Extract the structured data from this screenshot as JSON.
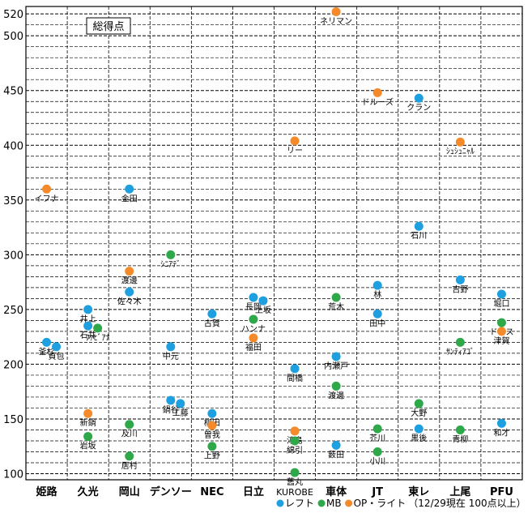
{
  "chart_data": {
    "type": "scatter",
    "title": "総得点",
    "categories": [
      "姫路",
      "久光",
      "岡山",
      "デンソー",
      "NEC",
      "日立",
      "KUROBE",
      "車体",
      "JT",
      "東レ",
      "上尾",
      "PFU"
    ],
    "yticks": [
      100,
      150,
      200,
      250,
      300,
      350,
      400,
      450,
      500,
      520
    ],
    "ylim": [
      95,
      525
    ],
    "legend": [
      {
        "name": "レフト",
        "color": "#1e9fe0"
      },
      {
        "name": "MB",
        "color": "#2fa84a"
      },
      {
        "name": "OP・ライト",
        "color": "#f58a2b"
      }
    ],
    "footnote": "（12/29現在 100点以上）",
    "colors": {
      "レフト": "#1e9fe0",
      "MB": "#2fa84a",
      "OP・ライト": "#f58a2b"
    },
    "points": [
      {
        "team": "姫路",
        "name": "イフナ",
        "pos": "OP・ライト",
        "value": 360
      },
      {
        "team": "姫路",
        "name": "釜杉",
        "pos": "レフト",
        "value": 220
      },
      {
        "team": "姫路",
        "name": "貞包",
        "pos": "レフト",
        "value": 216
      },
      {
        "team": "久光",
        "name": "井上",
        "pos": "レフト",
        "value": 250
      },
      {
        "team": "久光",
        "name": "石井",
        "pos": "レフト",
        "value": 235
      },
      {
        "team": "久光",
        "name": "ﾌｧﾋﾞｱﾅ",
        "pos": "MB",
        "value": 233
      },
      {
        "team": "久光",
        "name": "新鍋",
        "pos": "OP・ライト",
        "value": 155
      },
      {
        "team": "久光",
        "name": "岩坂",
        "pos": "MB",
        "value": 134
      },
      {
        "team": "岡山",
        "name": "金田",
        "pos": "レフト",
        "value": 360
      },
      {
        "team": "岡山",
        "name": "渡邊",
        "pos": "OP・ライト",
        "value": 285
      },
      {
        "team": "岡山",
        "name": "佐々木",
        "pos": "レフト",
        "value": 266
      },
      {
        "team": "岡山",
        "name": "及川",
        "pos": "MB",
        "value": 145
      },
      {
        "team": "岡山",
        "name": "居村",
        "pos": "MB",
        "value": 116
      },
      {
        "team": "デンソー",
        "name": "ｼﾆｱﾃﾞ",
        "pos": "MB",
        "value": 300
      },
      {
        "team": "デンソー",
        "name": "中元",
        "pos": "レフト",
        "value": 216
      },
      {
        "team": "デンソー",
        "name": "鍋谷",
        "pos": "レフト",
        "value": 167
      },
      {
        "team": "デンソー",
        "name": "工藤",
        "pos": "レフト",
        "value": 164
      },
      {
        "team": "NEC",
        "name": "古賀",
        "pos": "レフト",
        "value": 246
      },
      {
        "team": "NEC",
        "name": "柳田",
        "pos": "レフト",
        "value": 155
      },
      {
        "team": "NEC",
        "name": "曽我",
        "pos": "OP・ライト",
        "value": 144
      },
      {
        "team": "NEC",
        "name": "上野",
        "pos": "MB",
        "value": 125
      },
      {
        "team": "日立",
        "name": "長岡",
        "pos": "レフト",
        "value": 261
      },
      {
        "team": "日立",
        "name": "上坂",
        "pos": "レフト",
        "value": 258
      },
      {
        "team": "日立",
        "name": "ハンナ",
        "pos": "MB",
        "value": 241
      },
      {
        "team": "日立",
        "name": "福田",
        "pos": "OP・ライト",
        "value": 224
      },
      {
        "team": "KUROBE",
        "name": "リー",
        "pos": "OP・ライト",
        "value": 404
      },
      {
        "team": "KUROBE",
        "name": "間橋",
        "pos": "レフト",
        "value": 196
      },
      {
        "team": "KUROBE",
        "name": "淳島",
        "pos": "OP・ライト",
        "value": 139
      },
      {
        "team": "KUROBE",
        "name": "綿引",
        "pos": "MB",
        "value": 130
      },
      {
        "team": "KUROBE",
        "name": "舊丸",
        "pos": "MB",
        "value": 101
      },
      {
        "team": "車体",
        "name": "ネリマン",
        "pos": "OP・ライト",
        "value": 522
      },
      {
        "team": "車体",
        "name": "荒木",
        "pos": "MB",
        "value": 261
      },
      {
        "team": "車体",
        "name": "内瀬戸",
        "pos": "レフト",
        "value": 207
      },
      {
        "team": "車体",
        "name": "渡邊",
        "pos": "MB",
        "value": 180
      },
      {
        "team": "車体",
        "name": "薮田",
        "pos": "レフト",
        "value": 126
      },
      {
        "team": "JT",
        "name": "ドルーズ",
        "pos": "OP・ライト",
        "value": 448
      },
      {
        "team": "JT",
        "name": "林",
        "pos": "レフト",
        "value": 272
      },
      {
        "team": "JT",
        "name": "田中",
        "pos": "レフト",
        "value": 246
      },
      {
        "team": "JT",
        "name": "芥川",
        "pos": "MB",
        "value": 141
      },
      {
        "team": "JT",
        "name": "小川",
        "pos": "MB",
        "value": 120
      },
      {
        "team": "東レ",
        "name": "クラン",
        "pos": "レフト",
        "value": 443
      },
      {
        "team": "東レ",
        "name": "石川",
        "pos": "レフト",
        "value": 326
      },
      {
        "team": "東レ",
        "name": "大野",
        "pos": "MB",
        "value": 164
      },
      {
        "team": "東レ",
        "name": "黒後",
        "pos": "レフト",
        "value": 141
      },
      {
        "team": "上尾",
        "name": "ｼｭｼｭﾆｬﾙ",
        "pos": "OP・ライト",
        "value": 403
      },
      {
        "team": "上尾",
        "name": "吉野",
        "pos": "レフト",
        "value": 277
      },
      {
        "team": "上尾",
        "name": "ｻﾝﾃｨｱｺﾞ",
        "pos": "MB",
        "value": 220
      },
      {
        "team": "上尾",
        "name": "青柳",
        "pos": "MB",
        "value": 140
      },
      {
        "team": "PFU",
        "name": "堀口",
        "pos": "レフト",
        "value": 264
      },
      {
        "team": "PFU",
        "name": "ドリス",
        "pos": "MB",
        "value": 238
      },
      {
        "team": "PFU",
        "name": "津賀",
        "pos": "OP・ライト",
        "value": 230
      },
      {
        "team": "PFU",
        "name": "和才",
        "pos": "レフト",
        "value": 146
      }
    ]
  }
}
